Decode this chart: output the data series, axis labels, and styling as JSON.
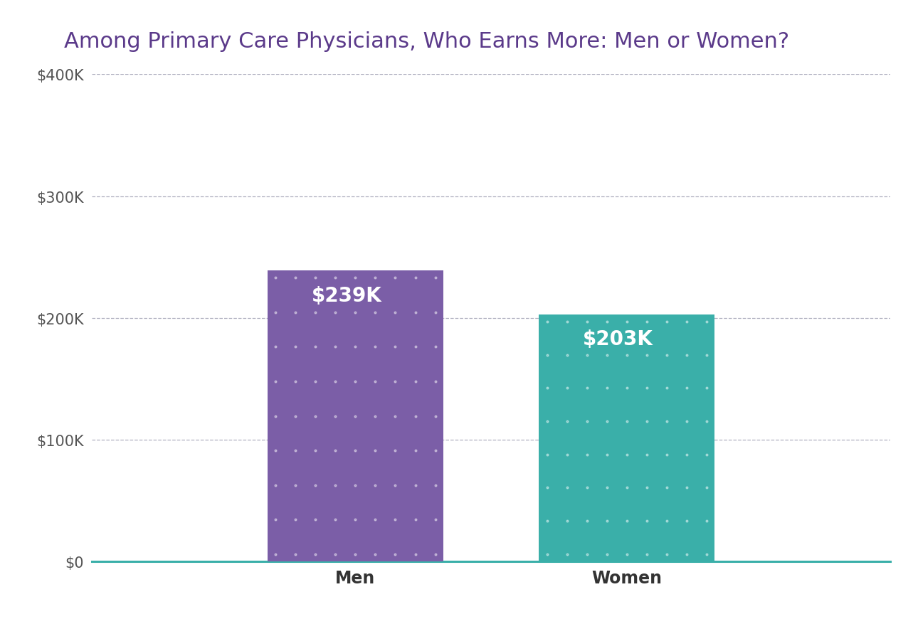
{
  "title": "Among Primary Care Physicians, Who Earns More: Men or Women?",
  "categories": [
    "Men",
    "Women"
  ],
  "values": [
    239000,
    203000
  ],
  "bar_colors": [
    "#7B5EA7",
    "#3AAFA9"
  ],
  "bar_labels": [
    "$239K",
    "$203K"
  ],
  "label_color": "#ffffff",
  "label_fontsize": 20,
  "title_color": "#5B3A8A",
  "title_fontsize": 22,
  "tick_label_color": "#555555",
  "tick_fontsize": 15,
  "xlabel_fontsize": 17,
  "xlabel_color": "#333333",
  "ylim": [
    0,
    400000
  ],
  "yticks": [
    0,
    100000,
    200000,
    300000,
    400000
  ],
  "ytick_labels": [
    "$0",
    "$100K",
    "$200K",
    "$300K",
    "$400K"
  ],
  "grid_color": "#b0b0c0",
  "grid_linestyle": "--",
  "grid_linewidth": 0.9,
  "background_color": "#ffffff",
  "axis_line_color": "#3AAFA9",
  "bar_width": 0.22,
  "x_positions": [
    0.33,
    0.67
  ],
  "xlim": [
    0.0,
    1.0
  ]
}
